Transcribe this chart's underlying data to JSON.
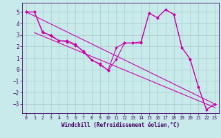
{
  "xlabel": "Windchill (Refroidissement éolien,°C)",
  "bg_color": "#c8eaea",
  "line_color": "#cc00aa",
  "grid_color": "#a8cccc",
  "xlim": [
    -0.5,
    23.5
  ],
  "ylim": [
    -3.8,
    5.8
  ],
  "yticks": [
    -3,
    -2,
    -1,
    0,
    1,
    2,
    3,
    4,
    5
  ],
  "xticks": [
    0,
    1,
    2,
    3,
    4,
    5,
    6,
    7,
    8,
    9,
    10,
    11,
    12,
    13,
    14,
    15,
    16,
    17,
    18,
    19,
    20,
    21,
    22,
    23
  ],
  "font_color": "#440066",
  "curve1_x": [
    0,
    1,
    2,
    3,
    4,
    5,
    6,
    7,
    8,
    9,
    10,
    11,
    12,
    13,
    14,
    15,
    16,
    17,
    18,
    19,
    20,
    21,
    22,
    23
  ],
  "curve1_y": [
    5.0,
    5.0,
    3.2,
    3.0,
    2.5,
    2.5,
    2.2,
    1.5,
    0.8,
    0.5,
    -0.1,
    0.9,
    2.3,
    2.3,
    2.3,
    4.9,
    4.5,
    5.2,
    4.8,
    1.9,
    0.9,
    -1.5,
    -3.5,
    -3.0
  ],
  "curve2_x": [
    0,
    1,
    2,
    3,
    4,
    5,
    6,
    7,
    8,
    9,
    10,
    11,
    12,
    13,
    14,
    15,
    16,
    17,
    18,
    19,
    20,
    21,
    22,
    23
  ],
  "curve2_y": [
    5.0,
    5.0,
    3.3,
    2.9,
    2.5,
    2.4,
    2.1,
    1.6,
    0.85,
    0.4,
    -0.05,
    1.9,
    2.3,
    2.3,
    2.4,
    4.9,
    4.5,
    5.2,
    4.8,
    1.9,
    0.9,
    -1.5,
    -3.5,
    -3.0
  ],
  "trend1_x": [
    0,
    23
  ],
  "trend1_y": [
    5.0,
    -3.0
  ],
  "trend2_x": [
    1,
    23
  ],
  "trend2_y": [
    3.2,
    -3.3
  ]
}
